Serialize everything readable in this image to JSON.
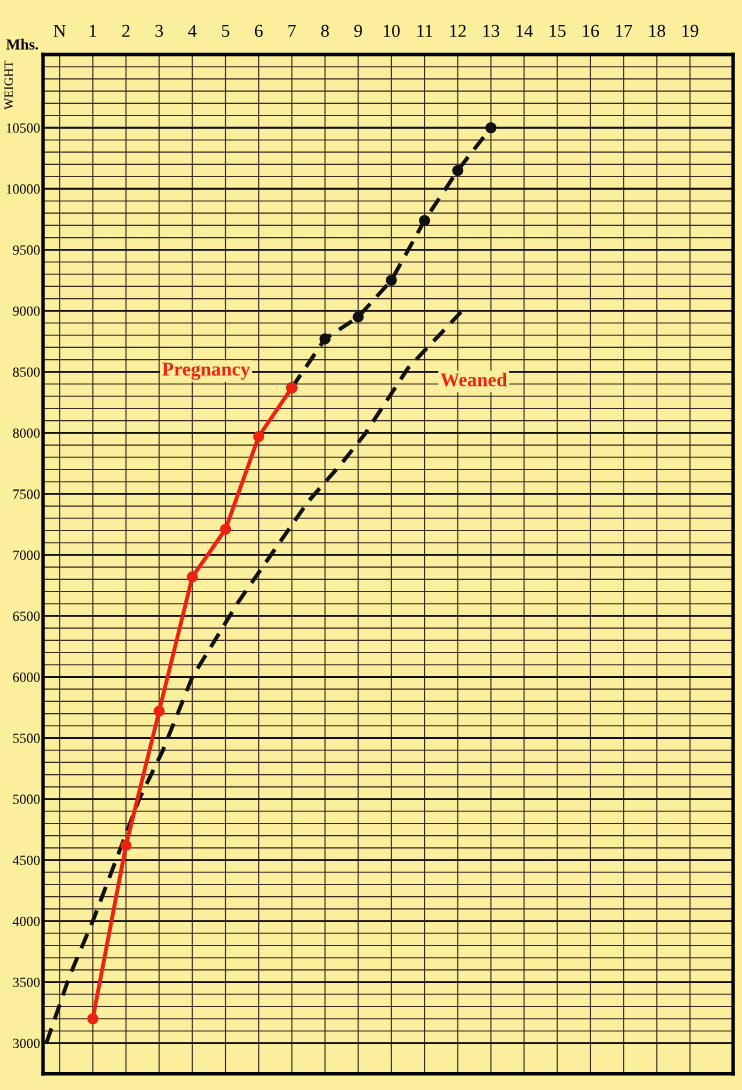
{
  "chart_data": {
    "type": "line",
    "xlabel": "Mhs.",
    "ylabel": "WEIGHT",
    "series": [
      {
        "name": "Pregnancy",
        "color": "#ee2211",
        "marker": "circle",
        "line_style": "solid",
        "x": [
          1,
          2,
          3,
          4,
          5,
          6,
          7
        ],
        "values": [
          3200,
          4620,
          5720,
          6820,
          7210,
          7970,
          8370
        ]
      },
      {
        "color": "#111111",
        "marker": "circle",
        "line_style": "dashed",
        "x": [
          7,
          8,
          9,
          10,
          11,
          12,
          13
        ],
        "values": [
          8370,
          8770,
          8950,
          9250,
          9740,
          10150,
          10500
        ]
      },
      {
        "name": "Weaned",
        "color": "#111111",
        "marker": "none",
        "line_style": "dashed",
        "x": [
          -0.4,
          0.3,
          1,
          2.4,
          3.1,
          4,
          5.4,
          6.5,
          7.5,
          8.5,
          9.2,
          10.5,
          12.1
        ],
        "values": [
          3000,
          3550,
          4000,
          5000,
          5390,
          6000,
          6620,
          7050,
          7440,
          7750,
          7990,
          8530,
          8990
        ]
      }
    ],
    "xlim": [
      -0.5,
      20.3
    ],
    "xticks": [
      {
        "value": 0,
        "label": "N"
      },
      1,
      2,
      3,
      4,
      5,
      6,
      7,
      8,
      9,
      10,
      11,
      12,
      13,
      14,
      15,
      16,
      17,
      18,
      19
    ],
    "ylim": [
      2750,
      11100
    ],
    "yticks": [
      3000,
      {
        "value": 3100,
        "label": null
      },
      {
        "value": 3200,
        "label": null
      },
      {
        "value": 3300,
        "label": null
      },
      {
        "value": 3400,
        "label": null
      },
      3500,
      {
        "value": 3600,
        "label": null
      },
      {
        "value": 3700,
        "label": null
      },
      {
        "value": 3800,
        "label": null
      },
      {
        "value": 3900,
        "label": null
      },
      4000,
      {
        "value": 4100,
        "label": null
      },
      {
        "value": 4200,
        "label": null
      },
      {
        "value": 4300,
        "label": null
      },
      {
        "value": 4400,
        "label": null
      },
      4500,
      {
        "value": 4600,
        "label": null
      },
      {
        "value": 4700,
        "label": null
      },
      {
        "value": 4800,
        "label": null
      },
      {
        "value": 4900,
        "label": null
      },
      5000,
      {
        "value": 5100,
        "label": null
      },
      {
        "value": 5200,
        "label": null
      },
      {
        "value": 5300,
        "label": null
      },
      {
        "value": 5400,
        "label": null
      },
      5500,
      {
        "value": 5600,
        "label": null
      },
      {
        "value": 5700,
        "label": null
      },
      {
        "value": 5800,
        "label": null
      },
      {
        "value": 5900,
        "label": null
      },
      6000,
      {
        "value": 6100,
        "label": null
      },
      {
        "value": 6200,
        "label": null
      },
      {
        "value": 6300,
        "label": null
      },
      {
        "value": 6400,
        "label": null
      },
      6500,
      {
        "value": 6600,
        "label": null
      },
      {
        "value": 6700,
        "label": null
      },
      {
        "value": 6800,
        "label": null
      },
      {
        "value": 6900,
        "label": null
      },
      7000,
      {
        "value": 7100,
        "label": null
      },
      {
        "value": 7200,
        "label": null
      },
      {
        "value": 7300,
        "label": null
      },
      {
        "value": 7400,
        "label": null
      },
      7500,
      {
        "value": 7600,
        "label": null
      },
      {
        "value": 7700,
        "label": null
      },
      {
        "value": 7800,
        "label": null
      },
      {
        "value": 7900,
        "label": null
      },
      8000,
      {
        "value": 8100,
        "label": null
      },
      {
        "value": 8200,
        "label": null
      },
      {
        "value": 8300,
        "label": null
      },
      {
        "value": 8400,
        "label": null
      },
      8500,
      {
        "value": 8600,
        "label": null
      },
      {
        "value": 8700,
        "label": null
      },
      {
        "value": 8800,
        "label": null
      },
      {
        "value": 8900,
        "label": null
      },
      9000,
      {
        "value": 9100,
        "label": null
      },
      {
        "value": 9200,
        "label": null
      },
      {
        "value": 9300,
        "label": null
      },
      {
        "value": 9400,
        "label": null
      },
      9500,
      {
        "value": 9600,
        "label": null
      },
      {
        "value": 9700,
        "label": null
      },
      {
        "value": 9800,
        "label": null
      },
      {
        "value": 9900,
        "label": null
      },
      10000,
      {
        "value": 10100,
        "label": null
      },
      {
        "value": 10200,
        "label": null
      },
      {
        "value": 10300,
        "label": null
      },
      {
        "value": 10400,
        "label": null
      },
      10500,
      {
        "value": 10600,
        "label": null
      },
      {
        "value": 10700,
        "label": null
      },
      {
        "value": 10800,
        "label": null
      },
      {
        "value": 10900,
        "label": null
      },
      {
        "value": 11000,
        "label": null
      }
    ],
    "grid": true
  }
}
